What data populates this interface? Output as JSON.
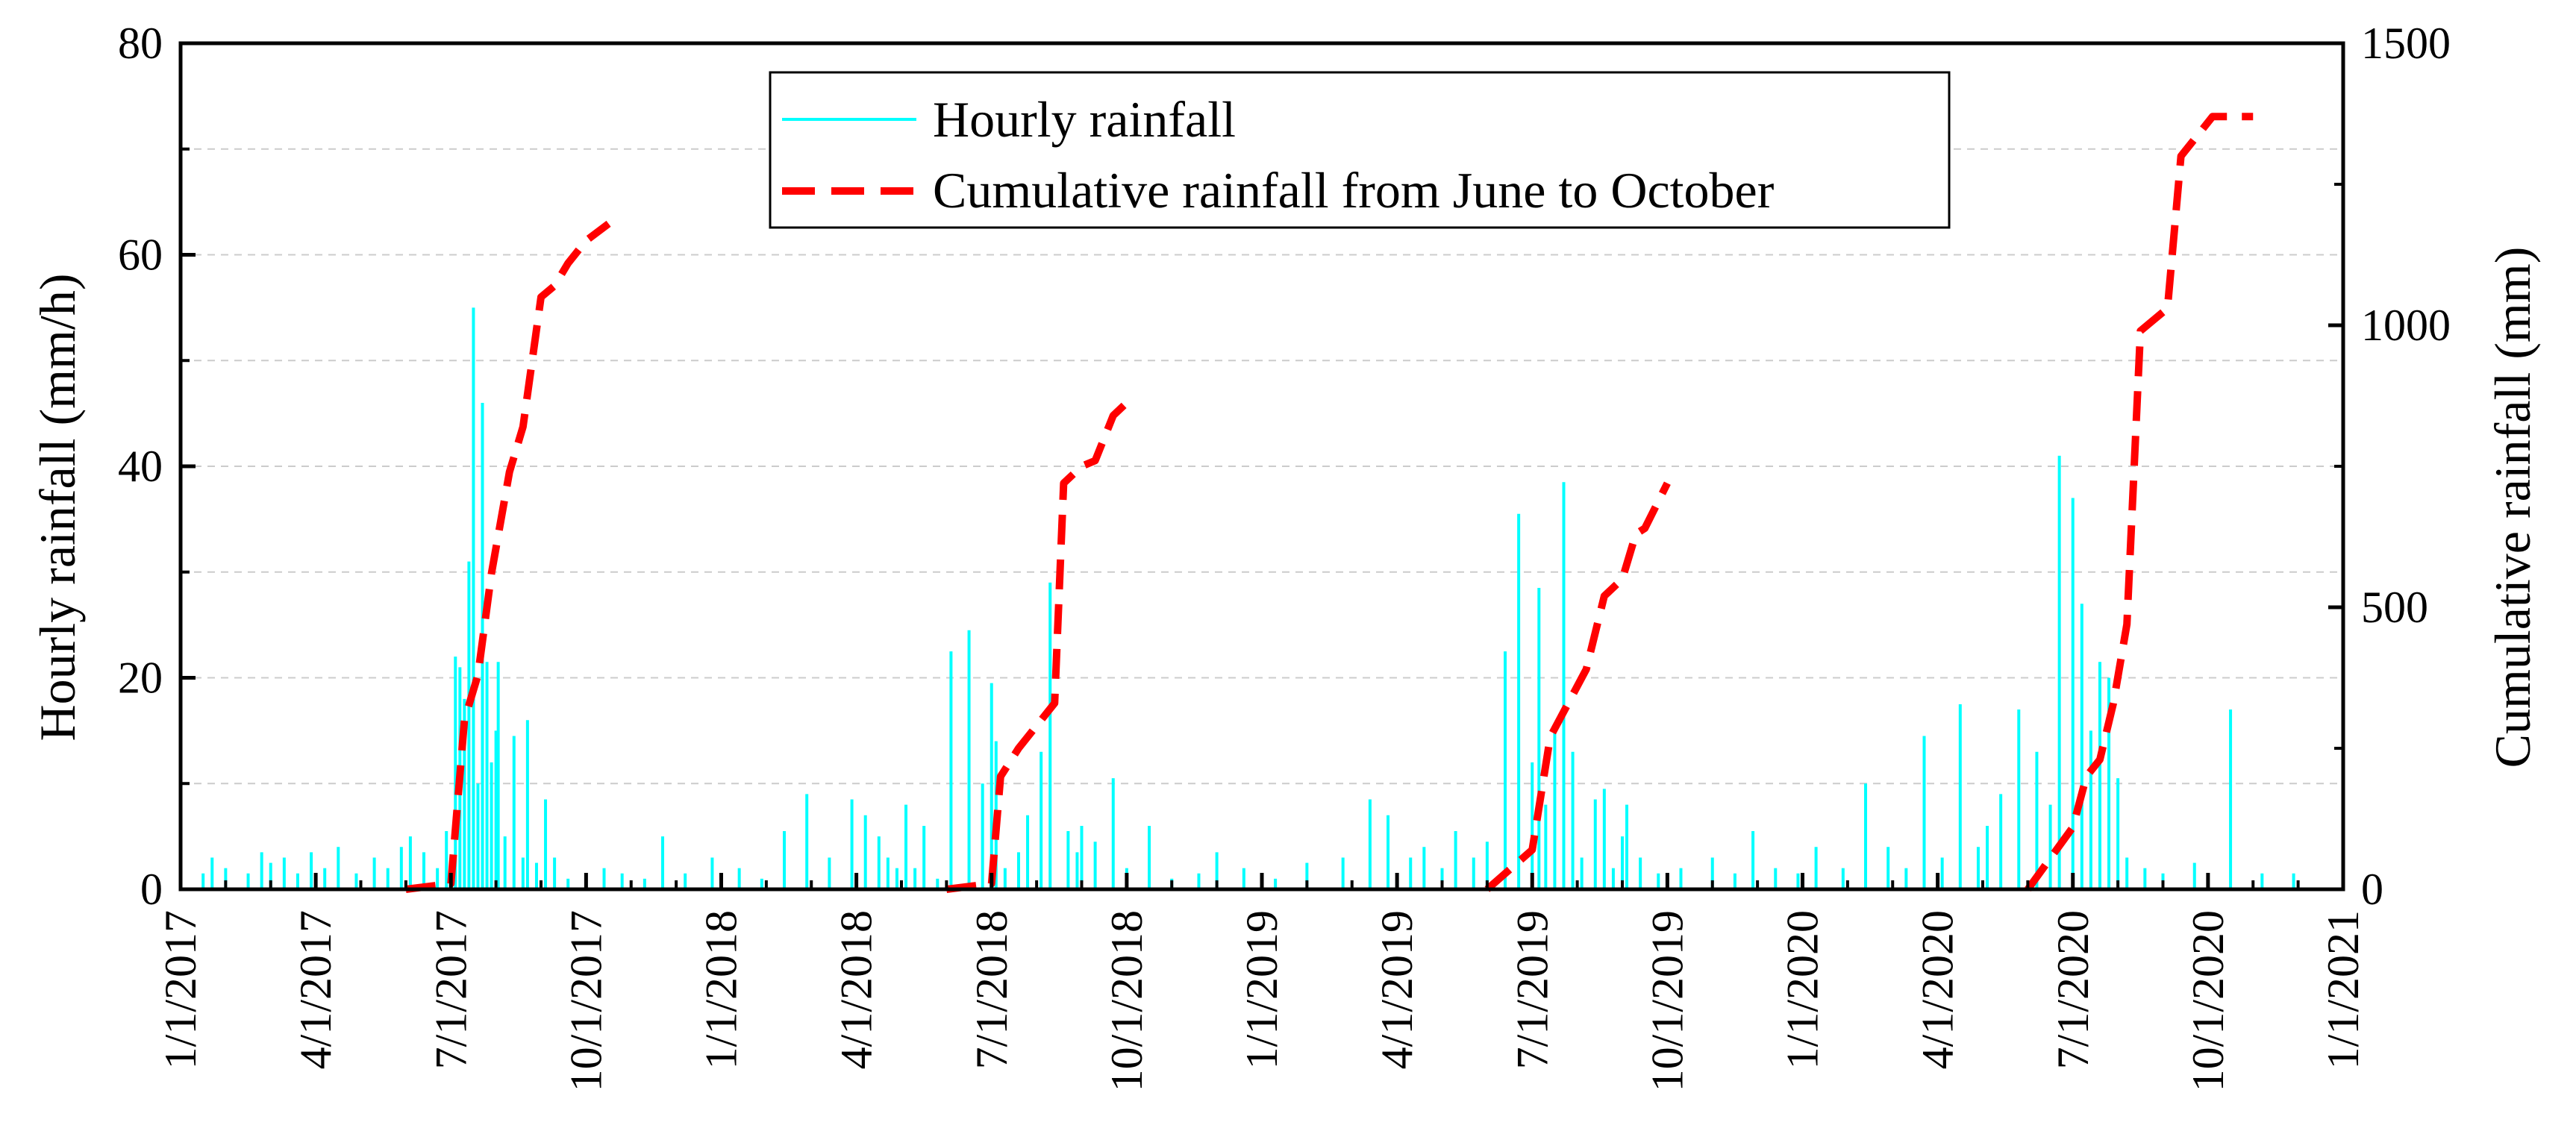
{
  "chart_data": {
    "type": "line",
    "title": "",
    "xlabel": "",
    "ylabel": "Hourly rainfall (mm/h)",
    "y2label": "Cumulative rainfall (mm)",
    "ylim": [
      0,
      80
    ],
    "y2lim": [
      0,
      1500
    ],
    "yticks": [
      "0",
      "20",
      "40",
      "60",
      "80"
    ],
    "y2ticks": [
      "0",
      "500",
      "1000",
      "1500"
    ],
    "xlim": [
      0,
      48
    ],
    "xticks": [
      "1/1/2017",
      "4/1/2017",
      "7/1/2017",
      "10/1/2017",
      "1/1/2018",
      "4/1/2018",
      "7/1/2018",
      "10/1/2018",
      "1/1/2019",
      "4/1/2019",
      "7/1/2019",
      "10/1/2019",
      "1/1/2020",
      "4/1/2020",
      "7/1/2020",
      "10/1/2020",
      "1/1/2021"
    ],
    "grid": "horizontal dashed",
    "legend_position": "top-center",
    "colors": {
      "hourly": "#00FFFF",
      "cumulative": "#FF0000"
    },
    "series": [
      {
        "name": "Hourly rainfall",
        "axis": "left",
        "x_unit": "months since 1/1/2017",
        "x": [
          0.5,
          0.7,
          1.0,
          1.5,
          1.8,
          2.0,
          2.3,
          2.6,
          2.9,
          3.2,
          3.5,
          3.9,
          4.3,
          4.6,
          4.9,
          5.1,
          5.4,
          5.7,
          5.9,
          6.1,
          6.2,
          6.3,
          6.4,
          6.5,
          6.6,
          6.7,
          6.8,
          6.9,
          7.0,
          7.05,
          7.2,
          7.4,
          7.6,
          7.7,
          7.9,
          8.1,
          8.3,
          8.6,
          9.0,
          9.4,
          9.8,
          10.3,
          10.7,
          11.2,
          11.8,
          12.4,
          12.9,
          13.4,
          13.9,
          14.4,
          14.9,
          15.2,
          15.5,
          15.7,
          15.9,
          16.1,
          16.3,
          16.5,
          16.8,
          17.1,
          17.5,
          17.8,
          18.0,
          18.1,
          18.3,
          18.6,
          18.8,
          19.1,
          19.3,
          19.7,
          19.9,
          20.0,
          20.3,
          20.7,
          21.0,
          21.5,
          22.0,
          22.6,
          23.0,
          23.6,
          24.3,
          25.0,
          25.8,
          26.4,
          26.8,
          27.3,
          27.6,
          28.0,
          28.3,
          28.7,
          29.0,
          29.4,
          29.7,
          30.0,
          30.15,
          30.3,
          30.5,
          30.7,
          30.9,
          31.1,
          31.4,
          31.6,
          31.8,
          32.0,
          32.1,
          32.4,
          32.8,
          33.3,
          34.0,
          34.5,
          34.9,
          35.4,
          35.9,
          36.3,
          36.9,
          37.4,
          37.9,
          38.3,
          38.7,
          39.1,
          39.5,
          39.9,
          40.1,
          40.4,
          40.8,
          41.2,
          41.5,
          41.7,
          42.0,
          42.2,
          42.4,
          42.6,
          42.8,
          43.0,
          43.2,
          43.6,
          44.0,
          44.7,
          45.5,
          46.2,
          46.9
        ],
        "values": [
          1.5,
          3,
          2,
          1.5,
          3.5,
          2.5,
          3,
          1.5,
          3.5,
          2,
          4,
          1.5,
          3,
          2,
          4,
          5,
          3.5,
          2,
          5.5,
          22,
          21,
          18,
          31,
          55,
          10,
          46,
          21.5,
          12,
          15,
          21.5,
          5,
          14.5,
          3,
          16,
          2.5,
          8.5,
          3,
          1,
          1.5,
          2,
          1.5,
          1,
          5,
          1.5,
          3,
          2,
          1,
          5.5,
          9,
          3,
          8.5,
          7,
          5,
          3,
          2,
          8,
          2,
          6,
          1,
          22.5,
          24.5,
          10,
          19.5,
          14,
          2,
          3.5,
          7,
          13,
          29,
          5.5,
          3.5,
          6,
          4.5,
          10.5,
          2,
          6,
          1,
          1.5,
          3.5,
          2,
          1,
          2.5,
          3,
          8.5,
          7,
          3,
          4,
          2,
          5.5,
          3,
          4.5,
          22.5,
          35.5,
          12,
          28.5,
          8,
          15.5,
          38.5,
          13,
          3,
          8.5,
          9.5,
          2,
          5,
          8,
          3,
          1.5,
          2,
          3,
          1.5,
          5.5,
          2,
          1.5,
          4,
          2,
          10,
          4,
          2,
          14.5,
          3,
          17.5,
          4,
          6,
          9,
          17,
          13,
          8,
          41,
          37,
          27,
          15,
          21.5,
          20,
          10.5,
          3,
          2,
          1.5,
          2.5,
          17,
          1.5,
          1.5
        ]
      },
      {
        "name": "Cumulative rainfall from June to October",
        "axis": "right",
        "segments": [
          {
            "x": [
              5.0,
              6.0,
              6.3,
              6.6,
              6.9,
              7.3,
              7.6,
              8.0,
              8.3,
              8.6,
              9.0,
              9.5
            ],
            "values": [
              0,
              10,
              300,
              380,
              560,
              740,
              820,
              1050,
              1070,
              1110,
              1150,
              1180
            ]
          },
          {
            "x": [
              17.0,
              18.0,
              18.2,
              18.6,
              19.0,
              19.4,
              19.6,
              20.0,
              20.3,
              20.7,
              21.1
            ],
            "values": [
              0,
              10,
              200,
              250,
              290,
              330,
              720,
              750,
              760,
              840,
              870
            ]
          },
          {
            "x": [
              29.0,
              30.0,
              30.4,
              30.8,
              31.2,
              31.6,
              32.0,
              32.3,
              32.5,
              33.0
            ],
            "values": [
              0,
              70,
              270,
              330,
              390,
              520,
              550,
              630,
              640,
              720
            ]
          },
          {
            "x": [
              41.0,
              42.0,
              42.3,
              42.6,
              42.9,
              43.2,
              43.5,
              43.8,
              44.1,
              44.4,
              44.7,
              45.1,
              46.0
            ],
            "values": [
              0,
              110,
              200,
              230,
              330,
              470,
              990,
              1010,
              1030,
              1300,
              1330,
              1370,
              1370
            ]
          }
        ]
      }
    ]
  }
}
